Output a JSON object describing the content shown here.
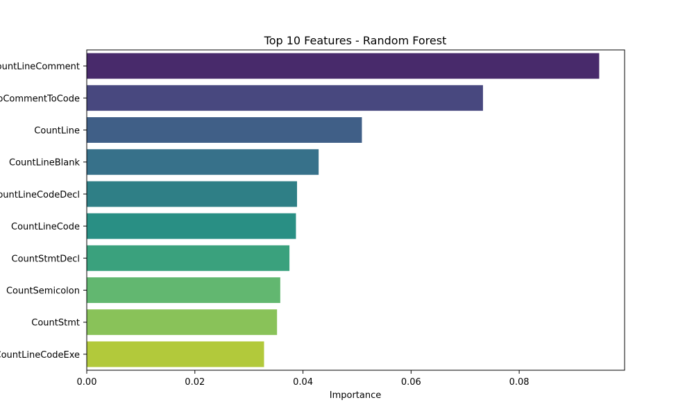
{
  "chart_data": {
    "type": "bar",
    "orientation": "horizontal",
    "title": "Top 10 Features - Random Forest",
    "xlabel": "Importance",
    "ylabel": "",
    "xlim": [
      0,
      0.0995
    ],
    "xticks": [
      0.0,
      0.02,
      0.04,
      0.06,
      0.08
    ],
    "xtick_labels": [
      "0.00",
      "0.02",
      "0.04",
      "0.06",
      "0.08"
    ],
    "grid": false,
    "categories": [
      "CountLineComment",
      "RatioCommentToCode",
      "CountLine",
      "CountLineBlank",
      "CountLineCodeDecl",
      "CountLineCode",
      "CountStmtDecl",
      "CountSemicolon",
      "CountStmt",
      "CountLineCodeExe"
    ],
    "values": [
      0.0948,
      0.0733,
      0.0509,
      0.0429,
      0.0389,
      0.0387,
      0.0375,
      0.0358,
      0.0352,
      0.0328
    ],
    "colors": [
      "#482a6b",
      "#48487f",
      "#405f87",
      "#37718a",
      "#2f7f86",
      "#298f84",
      "#3aa17d",
      "#62b770",
      "#89c259",
      "#b2c93b"
    ]
  }
}
